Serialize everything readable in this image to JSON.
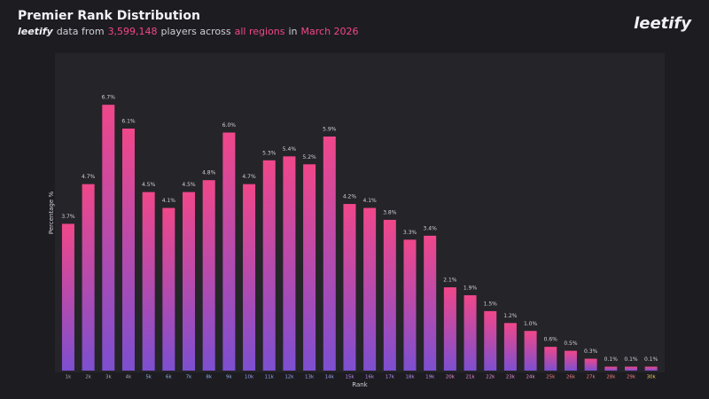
{
  "header": {
    "title": "Premier Rank Distribution",
    "logo": "leetify",
    "subtitle": [
      "data from",
      "3,599,148",
      "players across",
      "all regions",
      "in",
      "March 2026"
    ]
  },
  "chart_data": {
    "type": "bar",
    "x_label": "Rank",
    "y_label": "Percentage %",
    "categories": [
      "1k",
      "2k",
      "3k",
      "4k",
      "5k",
      "6k",
      "7k",
      "8k",
      "9k",
      "10k",
      "11k",
      "12k",
      "13k",
      "14k",
      "15k",
      "16k",
      "17k",
      "18k",
      "19k",
      "20k",
      "21k",
      "22k",
      "23k",
      "24k",
      "25k",
      "26k",
      "27k",
      "28k",
      "29k",
      "30k"
    ],
    "category_colors": [
      "#a9a9b3",
      "#a9a9b3",
      "#a9a9b3",
      "#a9a9b3",
      "#8fb4e8",
      "#8fb4e8",
      "#8fb4e8",
      "#8fb4e8",
      "#8fb4e8",
      "#9aa3f0",
      "#9aa3f0",
      "#9aa3f0",
      "#9aa3f0",
      "#9aa3f0",
      "#b98ff0",
      "#b98ff0",
      "#b98ff0",
      "#b98ff0",
      "#b98ff0",
      "#e88fd8",
      "#e88fd8",
      "#e88fd8",
      "#e88fd8",
      "#e88fd8",
      "#ee7f7f",
      "#ee7f7f",
      "#ee7f7f",
      "#ee7f7f",
      "#ee7f7f",
      "#f0cf5a"
    ],
    "values": [
      3.7,
      4.7,
      6.7,
      6.1,
      4.5,
      4.1,
      4.5,
      4.8,
      6.0,
      4.7,
      5.3,
      5.4,
      5.2,
      5.9,
      4.2,
      4.1,
      3.8,
      3.3,
      3.4,
      2.1,
      1.9,
      1.5,
      1.2,
      1.0,
      0.6,
      0.5,
      0.3,
      0.1,
      0.1,
      0.1
    ],
    "value_labels": [
      "3.7%",
      "4.7%",
      "6.7%",
      "6.1%",
      "4.5%",
      "4.1%",
      "4.5%",
      "4.8%",
      "6.0%",
      "4.7%",
      "5.3%",
      "5.4%",
      "5.2%",
      "5.9%",
      "4.2%",
      "4.1%",
      "3.8%",
      "3.3%",
      "3.4%",
      "2.1%",
      "1.9%",
      "1.5%",
      "1.2%",
      "1.0%",
      "0.6%",
      "0.5%",
      "0.3%",
      "0.1%",
      "0.1%",
      "0.1%"
    ],
    "color_top": "#f0478a",
    "color_bottom": "#7d4fd0",
    "ylim": [
      0,
      8
    ]
  }
}
